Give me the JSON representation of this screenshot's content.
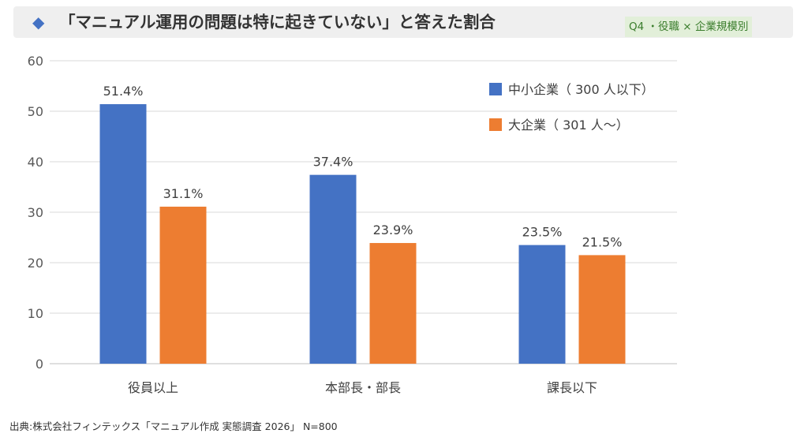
{
  "header": {
    "marker": "◆",
    "title": "「マニュアル運用の問題は特に起きていない」と答えた割合",
    "subtitle": "Q4 ・役職 × 企業規模別"
  },
  "chart_data": {
    "type": "bar",
    "categories": [
      "役員以上",
      "本部長・部長",
      "課長以下"
    ],
    "series": [
      {
        "name": "中小企業（ 300 人以下）",
        "values": [
          51.4,
          37.4,
          23.5
        ],
        "labels": [
          "51.4%",
          "37.4%",
          "23.5%"
        ],
        "color": "#4472c4"
      },
      {
        "name": "大企業（ 301 人〜）",
        "values": [
          31.1,
          23.9,
          21.5
        ],
        "labels": [
          "31.1%",
          "23.9%",
          "21.5%"
        ],
        "color": "#ed7d31"
      }
    ],
    "yticks": [
      0,
      10,
      20,
      30,
      40,
      50,
      60
    ],
    "ylim": [
      0,
      60
    ],
    "grid": true,
    "legend_position": "top-right"
  },
  "footer": {
    "source": "出典:株式会社フィンテックス「マニュアル作成 実態調査 2026」 N=800"
  }
}
